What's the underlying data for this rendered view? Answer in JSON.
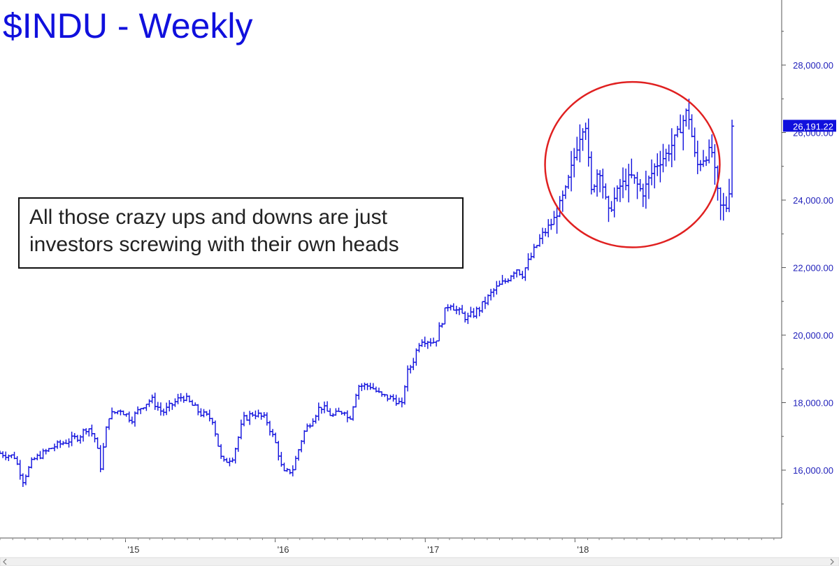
{
  "chart_data": {
    "type": "bar",
    "style": "ohlc",
    "title": "$INDU - Weekly",
    "xlabel": "",
    "ylabel": "",
    "ylim": [
      14000,
      30000
    ],
    "y_ticks": [
      "16,000.00",
      "18,000.00",
      "20,000.00",
      "22,000.00",
      "24,000.00",
      "26,000.00",
      "28,000.00"
    ],
    "y_tick_values": [
      16000,
      18000,
      20000,
      22000,
      24000,
      26000,
      28000
    ],
    "x_ticks": [
      "'15",
      "'16",
      "'17",
      "'18"
    ],
    "x_tick_values": [
      "2015-01-01",
      "2016-01-01",
      "2017-01-01",
      "2018-01-01"
    ],
    "x_range": [
      "2014-03-01",
      "2019-05-20"
    ],
    "last_value_label": "26,191.22",
    "last_value": 26191.22,
    "grid": false,
    "colors": {
      "bars": "#1010dd",
      "ellipse": "#e02020",
      "axis": "#555555"
    },
    "annotation": {
      "lines": [
        "All those crazy ups and downs are just",
        "investors screwing with their own heads"
      ]
    },
    "highlight_region": {
      "x_range": [
        "2017-10-20",
        "2018-12-20"
      ],
      "y_range": [
        22600,
        27500
      ],
      "shape": "ellipse",
      "color": "#e02020"
    },
    "anchors": [
      [
        "2014-03-01",
        16500
      ],
      [
        "2014-04-05",
        16400
      ],
      [
        "2014-04-26",
        15700
      ],
      [
        "2014-05-20",
        16300
      ],
      [
        "2014-07-10",
        16700
      ],
      [
        "2014-09-10",
        17000
      ],
      [
        "2014-10-01",
        17300
      ],
      [
        "2014-10-20",
        16900
      ],
      [
        "2014-11-01",
        16100
      ],
      [
        "2014-11-20",
        17600
      ],
      [
        "2014-12-20",
        17800
      ],
      [
        "2015-01-15",
        17500
      ],
      [
        "2015-02-10",
        17900
      ],
      [
        "2015-03-05",
        18100
      ],
      [
        "2015-04-01",
        17700
      ],
      [
        "2015-05-20",
        18200
      ],
      [
        "2015-07-01",
        17700
      ],
      [
        "2015-08-01",
        17500
      ],
      [
        "2015-08-25",
        16200
      ],
      [
        "2015-09-20",
        16400
      ],
      [
        "2015-10-15",
        17500
      ],
      [
        "2015-11-10",
        17700
      ],
      [
        "2015-12-10",
        17500
      ],
      [
        "2016-01-05",
        16700
      ],
      [
        "2016-01-20",
        15900
      ],
      [
        "2016-02-12",
        16000
      ],
      [
        "2016-03-10",
        17100
      ],
      [
        "2016-04-20",
        17900
      ],
      [
        "2016-05-20",
        17600
      ],
      [
        "2016-06-20",
        17800
      ],
      [
        "2016-06-28",
        17400
      ],
      [
        "2016-07-20",
        18500
      ],
      [
        "2016-08-20",
        18500
      ],
      [
        "2016-09-15",
        18200
      ],
      [
        "2016-10-20",
        18100
      ],
      [
        "2016-11-05",
        17900
      ],
      [
        "2016-11-15",
        18800
      ],
      [
        "2016-12-01",
        19200
      ],
      [
        "2016-12-20",
        19900
      ],
      [
        "2017-01-25",
        19800
      ],
      [
        "2017-02-15",
        20600
      ],
      [
        "2017-03-01",
        21000
      ],
      [
        "2017-03-20",
        20700
      ],
      [
        "2017-04-15",
        20500
      ],
      [
        "2017-05-15",
        20800
      ],
      [
        "2017-06-15",
        21300
      ],
      [
        "2017-07-15",
        21600
      ],
      [
        "2017-08-10",
        22000
      ],
      [
        "2017-08-25",
        21800
      ],
      [
        "2017-09-15",
        22300
      ],
      [
        "2017-10-10",
        22900
      ],
      [
        "2017-11-10",
        23400
      ],
      [
        "2017-12-10",
        24300
      ],
      [
        "2018-01-10",
        25800
      ],
      [
        "2018-01-26",
        26400
      ],
      [
        "2018-02-09",
        24200
      ],
      [
        "2018-03-01",
        25000
      ],
      [
        "2018-03-23",
        23600
      ],
      [
        "2018-04-20",
        24400
      ],
      [
        "2018-05-20",
        24700
      ],
      [
        "2018-06-15",
        24200
      ],
      [
        "2018-07-15",
        25000
      ],
      [
        "2018-08-15",
        25400
      ],
      [
        "2018-09-10",
        26000
      ],
      [
        "2018-10-03",
        26700
      ],
      [
        "2018-10-24",
        25000
      ],
      [
        "2018-11-15",
        25300
      ],
      [
        "2018-11-30",
        25500
      ],
      [
        "2018-12-20",
        23800
      ],
      [
        "2019-01-05",
        23800
      ],
      [
        "2019-01-12",
        24300
      ],
      [
        "2019-01-20",
        26191.22
      ]
    ]
  }
}
